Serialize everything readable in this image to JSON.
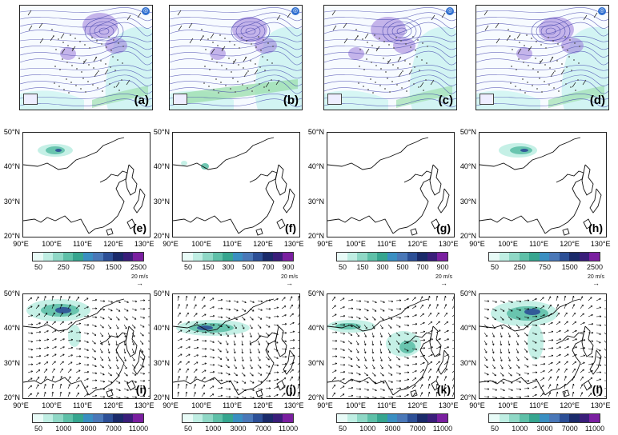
{
  "top_row": {
    "panels": [
      {
        "label": "(a)"
      },
      {
        "label": "(b)"
      },
      {
        "label": "(c)"
      },
      {
        "label": "(d)"
      }
    ]
  },
  "middle_row": {
    "lat_labels": [
      "50°N",
      "40°N",
      "30°N",
      "20°N"
    ],
    "lon_labels": [
      "90°E",
      "100°E",
      "110°E",
      "120°E",
      "130°E"
    ],
    "panels": [
      {
        "label": "(e)",
        "cbar_ticks": [
          "50",
          "250",
          "750",
          "1500",
          "2500"
        ]
      },
      {
        "label": "(f)",
        "cbar_ticks": [
          "50",
          "150",
          "300",
          "500",
          "700",
          "900"
        ]
      },
      {
        "label": "(g)",
        "cbar_ticks": [
          "50",
          "150",
          "300",
          "500",
          "700",
          "900"
        ]
      },
      {
        "label": "(h)",
        "cbar_ticks": [
          "50",
          "250",
          "750",
          "1500",
          "2500"
        ]
      }
    ]
  },
  "bottom_row": {
    "lat_labels": [
      "50°N",
      "40°N",
      "30°N",
      "20°N"
    ],
    "lon_labels": [
      "90°E",
      "100°E",
      "110°E",
      "120°E",
      "130°E"
    ],
    "ref_vector": "20 m/s",
    "panels": [
      {
        "label": "(i)",
        "cbar_ticks": [
          "50",
          "1000",
          "3000",
          "7000",
          "11000"
        ]
      },
      {
        "label": "(j)",
        "cbar_ticks": [
          "50",
          "1000",
          "3000",
          "7000",
          "11000"
        ]
      },
      {
        "label": "(k)",
        "cbar_ticks": [
          "50",
          "1000",
          "3000",
          "7000",
          "11000"
        ]
      },
      {
        "label": "(l)",
        "cbar_ticks": [
          "50",
          "1000",
          "3000",
          "7000",
          "11000"
        ]
      }
    ]
  },
  "colors": {
    "cbar": [
      "#e8fbf7",
      "#bfeee3",
      "#8fd8c6",
      "#5ec0a8",
      "#36a58f",
      "#3a8fc2",
      "#4a78b8",
      "#2c4f96",
      "#1a2a6a",
      "#3a1e7a",
      "#7a1fa0"
    ],
    "shade_light": "#bfeee3",
    "shade_mid": "#5ec0a8",
    "shade_dark": "#2c4f96",
    "weather_blue": "#3a3aa8",
    "weather_purple": "#9b7ad8",
    "weather_green": "#9fe0b0",
    "weather_cyan": "#c8f3f0"
  }
}
